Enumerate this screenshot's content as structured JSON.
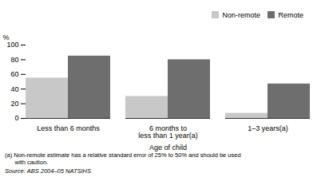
{
  "chart_data": {
    "type": "bar",
    "categories": [
      "Less than 6 months",
      "6 months to\nless than 1 year(a)",
      "1–3 years(a)"
    ],
    "series": [
      {
        "name": "Non-remote",
        "color": "#c8c8c8",
        "values": [
          55,
          30,
          7
        ]
      },
      {
        "name": "Remote",
        "color": "#6e6e6e",
        "values": [
          85,
          80,
          47
        ]
      }
    ],
    "ylabel": "%",
    "xlabel": "Age of child",
    "ylim": [
      0,
      100
    ],
    "yticks": [
      0,
      20,
      40,
      60,
      80,
      100
    ],
    "grid": false,
    "legend": "upper right",
    "annotations": [
      "(a) Non-remote estimate has a relative standard error of 25% to 50% and should be used",
      "      with caution.",
      "Source: ABS 2004–05 NATSIHS"
    ]
  }
}
